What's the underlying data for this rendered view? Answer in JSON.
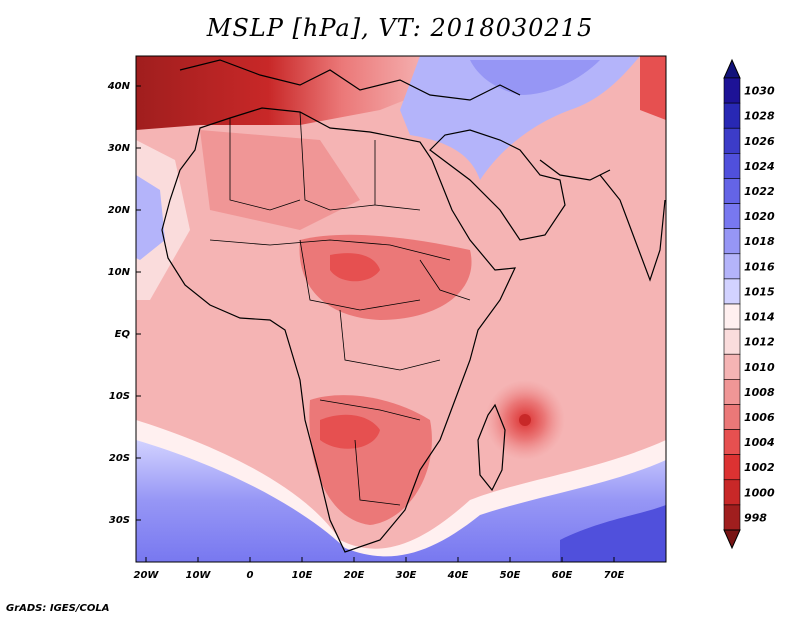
{
  "title": "MSLP [hPa], VT: 2018030215",
  "credit": "GrADS: IGES/COLA",
  "lat_labels": [
    "40N",
    "30N",
    "20N",
    "10N",
    "EQ",
    "10S",
    "20S",
    "30S"
  ],
  "lon_labels": [
    "20W",
    "10W",
    "0",
    "10E",
    "20E",
    "30E",
    "40E",
    "50E",
    "60E",
    "70E"
  ],
  "colorbar": {
    "labels": [
      "1030",
      "1028",
      "1026",
      "1024",
      "1022",
      "1020",
      "1018",
      "1016",
      "1015",
      "1014",
      "1012",
      "1010",
      "1008",
      "1006",
      "1004",
      "1002",
      "1000",
      "998"
    ],
    "colors": [
      "#1d1296",
      "#2828b4",
      "#3c3cc8",
      "#5050dc",
      "#6464e6",
      "#7878f0",
      "#9696f5",
      "#b4b4fa",
      "#d2d2ff",
      "#fff0f0",
      "#fadcdc",
      "#f5b4b4",
      "#f09696",
      "#eb7878",
      "#e65050",
      "#dc3232",
      "#c82828",
      "#a01e1e"
    ],
    "top_color": "#12127a",
    "bottom_color": "#781414"
  },
  "map_extent": {
    "lon_min": -22,
    "lon_max": 80,
    "lat_min": -37,
    "lat_max": 45
  }
}
